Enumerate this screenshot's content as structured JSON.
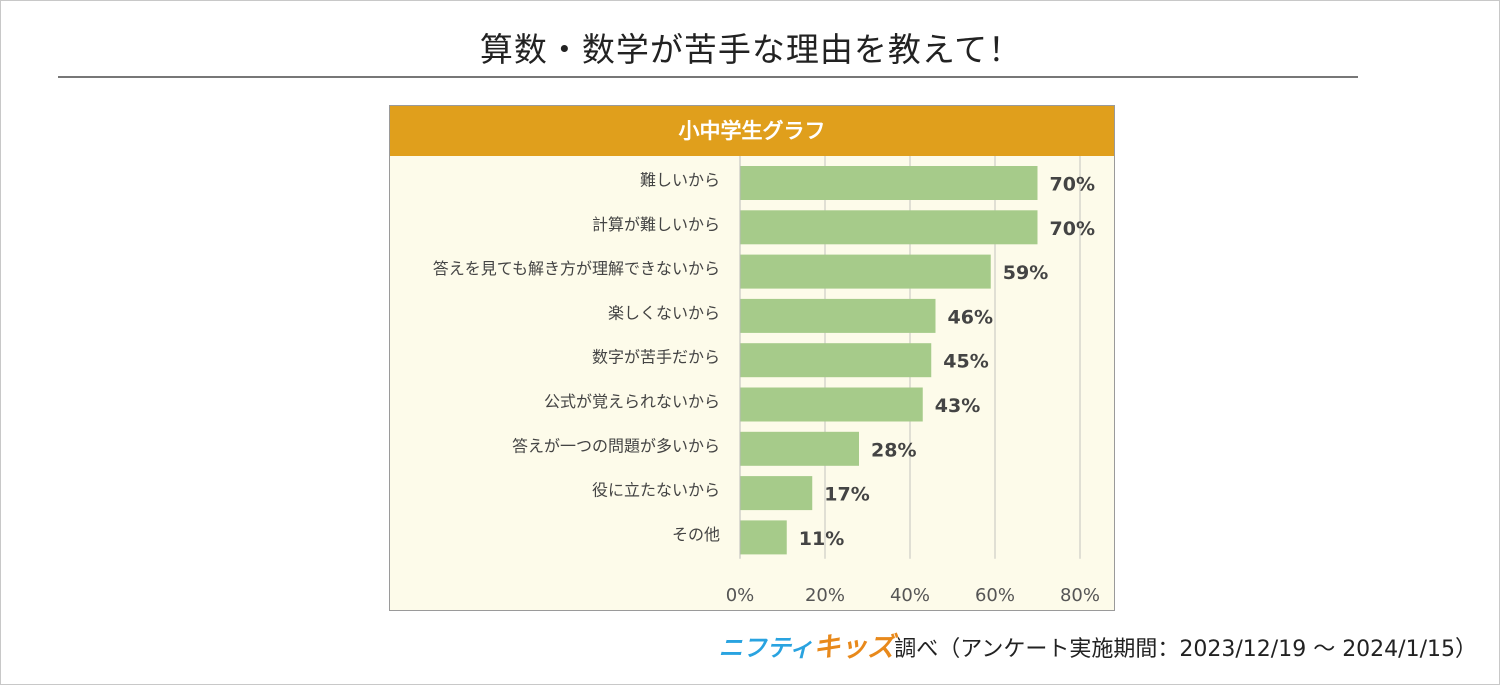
{
  "page": {
    "title": "算数・数学が苦手な理由を教えて！"
  },
  "chart_data": {
    "type": "bar",
    "orientation": "horizontal",
    "title": "小中学生グラフ",
    "categories": [
      "難しいから",
      "計算が難しいから",
      "答えを見ても解き方が理解できないから",
      "楽しくないから",
      "数字が苦手だから",
      "公式が覚えられないから",
      "答えが一つの問題が多いから",
      "役に立たないから",
      "その他"
    ],
    "values": [
      70,
      70,
      59,
      46,
      45,
      43,
      28,
      17,
      11
    ],
    "value_labels": [
      "70%",
      "70%",
      "59%",
      "46%",
      "45%",
      "43%",
      "28%",
      "17%",
      "11%"
    ],
    "xlim": [
      0,
      80
    ],
    "x_ticks": [
      "0%",
      "20%",
      "40%",
      "60%",
      "80%"
    ],
    "x_tick_values": [
      0,
      20,
      40,
      60,
      80
    ],
    "grid": true,
    "colors": {
      "bar": "#a6cb8a",
      "header": "#e09f1c",
      "plot_background": "#fdfbea",
      "grid": "#d6d6cc"
    }
  },
  "footer": {
    "brand_part1": "ニフティ",
    "brand_part2": "キッズ",
    "text": "調べ（アンケート実施期間：2023/12/19 ～ 2024/1/15）"
  }
}
